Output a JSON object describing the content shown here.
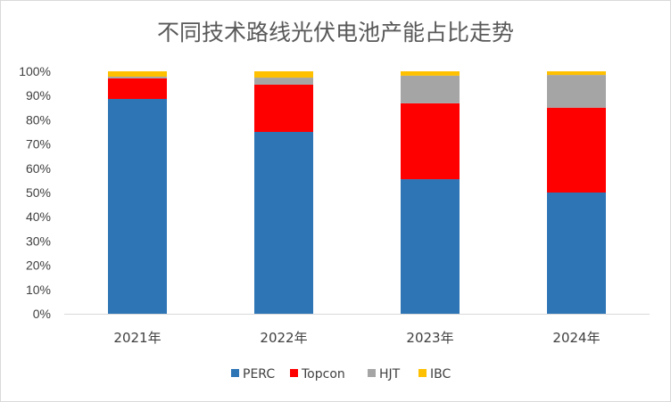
{
  "chart_data": {
    "type": "bar",
    "stacked": true,
    "title": "不同技术路线光伏电池产能占比走势",
    "xlabel": "",
    "ylabel": "",
    "ylim": [
      0,
      100
    ],
    "y_ticks": [
      "0%",
      "10%",
      "20%",
      "30%",
      "40%",
      "50%",
      "60%",
      "70%",
      "80%",
      "90%",
      "100%"
    ],
    "categories": [
      "2021年",
      "2022年",
      "2023年",
      "2024年"
    ],
    "series": [
      {
        "name": "PERC",
        "color": "#2E75B6",
        "values": [
          88.6,
          75.0,
          55.5,
          50.0
        ]
      },
      {
        "name": "Topcon",
        "color": "#FF0000",
        "values": [
          8.5,
          19.5,
          31.3,
          35.0
        ]
      },
      {
        "name": "HJT",
        "color": "#A5A5A5",
        "values": [
          0.7,
          2.9,
          11.4,
          13.5
        ]
      },
      {
        "name": "IBC",
        "color": "#FFC000",
        "values": [
          2.2,
          2.6,
          1.8,
          1.5
        ]
      }
    ],
    "grid": false,
    "legend_position": "bottom"
  }
}
